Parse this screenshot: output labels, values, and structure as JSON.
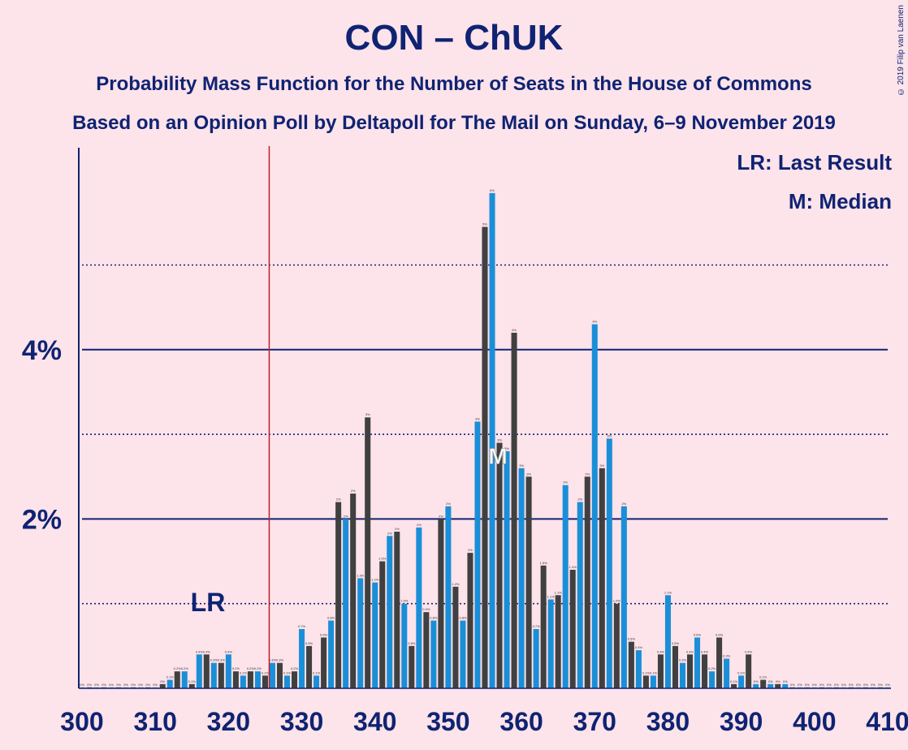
{
  "title": "CON – ChUK",
  "subtitle1": "Probability Mass Function for the Number of Seats in the House of Commons",
  "subtitle2": "Based on an Opinion Poll by Deltapoll for The Mail on Sunday, 6–9 November 2019",
  "legend": {
    "lr": "LR: Last Result",
    "median": "M: Median"
  },
  "copyright": "© 2019 Filip van Laenen",
  "colors": {
    "background": "#fde3ea",
    "dark_bar": "#404040",
    "blue_bar": "#1a8fd8",
    "axis": "#0f2372",
    "last_result_line": "#c0202a"
  },
  "chart_data": {
    "type": "bar",
    "xlim": [
      300,
      410
    ],
    "ylim": [
      0,
      6.3
    ],
    "y_unit": "%",
    "y_ticks": [
      {
        "value": 2,
        "label": "2%"
      },
      {
        "value": 4,
        "label": "4%"
      }
    ],
    "y_gridlines_dotted": [
      1,
      3,
      5
    ],
    "x_ticks": [
      300,
      310,
      320,
      330,
      340,
      350,
      360,
      370,
      380,
      390,
      400,
      410
    ],
    "last_result": {
      "seat": 326,
      "label": "LR"
    },
    "median": {
      "seat": 357,
      "label": "M"
    },
    "series": [
      {
        "seats": [
          300,
          301,
          302,
          303,
          304,
          305,
          306,
          307,
          308,
          309,
          310,
          311,
          312,
          313,
          314,
          315,
          316,
          317,
          318,
          319,
          320,
          321,
          322,
          323,
          324,
          325,
          326,
          327,
          328,
          329,
          330,
          331,
          332,
          333,
          334,
          335,
          336,
          337,
          338,
          339,
          340,
          341,
          342,
          343,
          344,
          345,
          346,
          347,
          348,
          349,
          350,
          351,
          352,
          353,
          354,
          355,
          356,
          357,
          358,
          359,
          360,
          361,
          362,
          363,
          364,
          365,
          366,
          367,
          368,
          369,
          370,
          371,
          372,
          373,
          374,
          375,
          376,
          377,
          378,
          379,
          380,
          381,
          382,
          383,
          384,
          385,
          386,
          387,
          388,
          389,
          390,
          391,
          392,
          393,
          394,
          395,
          396,
          397,
          398,
          399,
          400,
          401,
          402,
          403,
          404,
          405,
          406,
          407,
          408,
          409,
          410
        ],
        "values": [
          0,
          0,
          0,
          0,
          0,
          0,
          0,
          0,
          0,
          0,
          0,
          0.05,
          0.1,
          0.2,
          0.2,
          0.05,
          0.4,
          0.4,
          0.3,
          0.3,
          0.4,
          0.2,
          0.15,
          0.2,
          0.2,
          0.15,
          0.3,
          0.3,
          0.15,
          0.2,
          0.7,
          0.5,
          0.15,
          0.6,
          0.8,
          2.2,
          2.0,
          2.3,
          1.3,
          3.2,
          1.25,
          1.5,
          1.8,
          1.85,
          1.0,
          0.5,
          1.9,
          0.9,
          0.8,
          2.0,
          2.15,
          1.2,
          0.8,
          1.6,
          3.15,
          5.45,
          5.85,
          2.9,
          2.8,
          4.2,
          2.6,
          2.5,
          0.7,
          1.45,
          1.05,
          1.1,
          2.4,
          1.4,
          2.2,
          2.5,
          4.3,
          2.6,
          2.95,
          1.0,
          2.15,
          0.55,
          0.45,
          0.15,
          0.15,
          0.4,
          1.1,
          0.5,
          0.3,
          0.4,
          0.6,
          0.4,
          0.2,
          0.6,
          0.35,
          0.05,
          0.15,
          0.4,
          0.05,
          0.1,
          0.05,
          0.05,
          0.05,
          0,
          0,
          0,
          0,
          0,
          0,
          0,
          0,
          0,
          0,
          0,
          0,
          0,
          0
        ],
        "labels": [
          "0%",
          "0%",
          "0%",
          "0%",
          "0%",
          "0%",
          "0%",
          "0%",
          "0%",
          "0%",
          "0%",
          "0%",
          "0.1%",
          "0.2%",
          "0.2%",
          "0.1%",
          "0.4%",
          "0.4%",
          "0.3%",
          "0.3%",
          "0.4%",
          "0.2%",
          "0.1%",
          "0.2%",
          "0.2%",
          "0.1%",
          "0.3%",
          "0.3%",
          "0.1%",
          "0.2%",
          "0.7%",
          "0.5%",
          "0.1%",
          "0.6%",
          "0.8%",
          "2%",
          "2%",
          "2%",
          "1.3%",
          "3%",
          "1.2%",
          "1.5%",
          "2%",
          "2%",
          "1.0%",
          "0.5%",
          "2%",
          "0.9%",
          "0.8%",
          "2%",
          "2%",
          "1.2%",
          "0.8%",
          "2%",
          "3%",
          "5%",
          "6%",
          "3%",
          "3%",
          "4%",
          "3%",
          "3%",
          "0.7%",
          "1.5%",
          "1.1%",
          "1.1%",
          "2%",
          "1.4%",
          "2%",
          "2%",
          "4%",
          "3%",
          "3%",
          "1.0%",
          "2%",
          "0.5%",
          "0.4%",
          "0.1%",
          "0.1%",
          "0.4%",
          "1.1%",
          "0.5%",
          "0.3%",
          "0.4%",
          "0.6%",
          "0.4%",
          "0.2%",
          "0.6%",
          "0.3%",
          "0.1%",
          "0.1%",
          "0.4%",
          "0%",
          "0.1%",
          "0%",
          "0%",
          "0%",
          "0%",
          "0%",
          "0%",
          "0%",
          "0%",
          "0%",
          "0%",
          "0%",
          "0%",
          "0%",
          "0%",
          "0%",
          "0%",
          "0%"
        ]
      }
    ]
  }
}
